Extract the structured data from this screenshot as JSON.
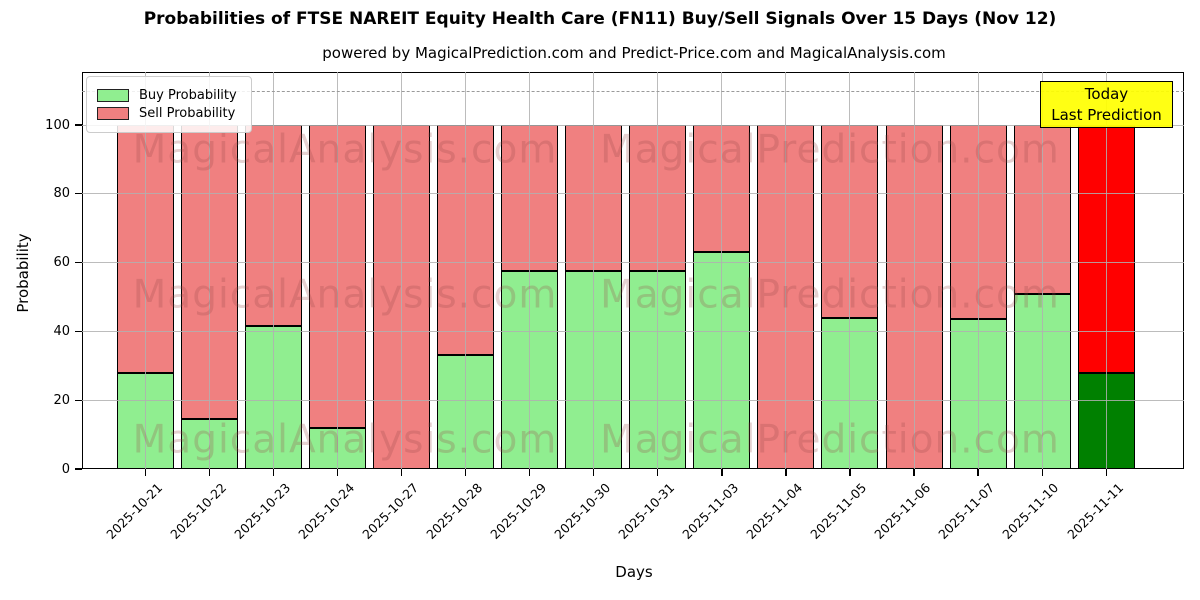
{
  "title": "Probabilities of FTSE NAREIT Equity Health Care (FN11) Buy/Sell Signals Over 15 Days (Nov 12)",
  "subtitle": "powered by MagicalPrediction.com and Predict-Price.com and MagicalAnalysis.com",
  "annotation": {
    "line1": "Today",
    "line2": "Last Prediction"
  },
  "legend": [
    {
      "label": "Buy Probability",
      "color": "#90EE90"
    },
    {
      "label": "Sell Probability",
      "color": "#F08080"
    }
  ],
  "watermarks": {
    "left": "MagicalAnalysis.com",
    "right": "MagicalPrediction.com"
  },
  "colors": {
    "buy": "#90EE90",
    "sell": "#F08080",
    "today_buy": "#008000",
    "today_sell": "#FF0000",
    "annotation_bg": "#FFFF00",
    "grid": "#b0b0b0",
    "dashed_line": "#9a9a9a",
    "bar_edge": "#000000"
  },
  "chart_data": {
    "type": "bar",
    "stacked": true,
    "title": "Probabilities of FTSE NAREIT Equity Health Care (FN11) Buy/Sell Signals Over 15 Days (Nov 12)",
    "xlabel": "Days",
    "ylabel": "Probability",
    "ylim": [
      0,
      115
    ],
    "yticks": [
      0,
      20,
      40,
      60,
      80,
      100
    ],
    "dashed_line_y": 110,
    "grid": true,
    "legend_position": "upper left",
    "categories": [
      "2025-10-21",
      "2025-10-22",
      "2025-10-23",
      "2025-10-24",
      "2025-10-27",
      "2025-10-28",
      "2025-10-29",
      "2025-10-30",
      "2025-10-31",
      "2025-11-03",
      "2025-11-04",
      "2025-11-05",
      "2025-11-06",
      "2025-11-07",
      "2025-11-10",
      "2025-11-11"
    ],
    "series": [
      {
        "name": "Buy Probability",
        "color": "#90EE90",
        "values": [
          28,
          14.5,
          41.5,
          12,
          0,
          33,
          57.5,
          57.5,
          57.5,
          63,
          0,
          44,
          0,
          43.5,
          51,
          28
        ]
      },
      {
        "name": "Sell Probability",
        "color": "#F08080",
        "values": [
          72,
          85.5,
          58.5,
          88,
          100,
          67,
          42.5,
          42.5,
          42.5,
          37,
          100,
          56,
          100,
          56.5,
          49,
          72
        ]
      }
    ],
    "today": {
      "index": 15,
      "buy_color": "#008000",
      "sell_color": "#FF0000",
      "label": "Today Last Prediction"
    }
  }
}
